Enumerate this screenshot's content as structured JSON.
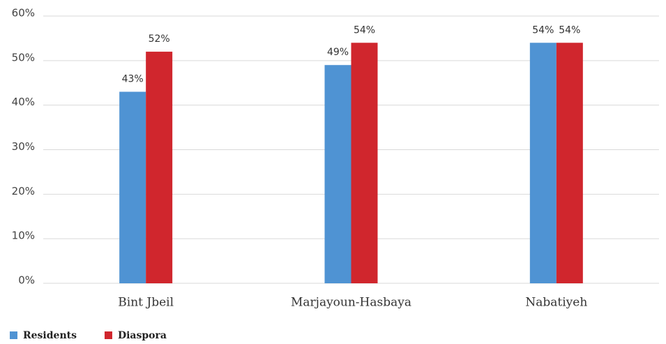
{
  "chart_data": {
    "type": "bar",
    "categories": [
      "Bint Jbeil",
      "Marjayoun-Hasbaya",
      "Nabatiyeh"
    ],
    "series": [
      {
        "name": "Residents",
        "color": "#4f93d3",
        "values": [
          43,
          49,
          54
        ],
        "value_labels": [
          "43%",
          "49%",
          "54%"
        ]
      },
      {
        "name": "Diaspora",
        "color": "#d0262d",
        "values": [
          52,
          54,
          54
        ],
        "value_labels": [
          "52%",
          "54%",
          "54%"
        ]
      }
    ],
    "ylim": [
      0,
      60
    ],
    "yticks": [
      {
        "value": 0,
        "label": "0%"
      },
      {
        "value": 10,
        "label": "10%"
      },
      {
        "value": 20,
        "label": "20%"
      },
      {
        "value": 30,
        "label": "30%"
      },
      {
        "value": 40,
        "label": "40%"
      },
      {
        "value": 50,
        "label": "50%"
      },
      {
        "value": 60,
        "label": "60%"
      }
    ],
    "grid": true,
    "legend": "bottom-left"
  }
}
